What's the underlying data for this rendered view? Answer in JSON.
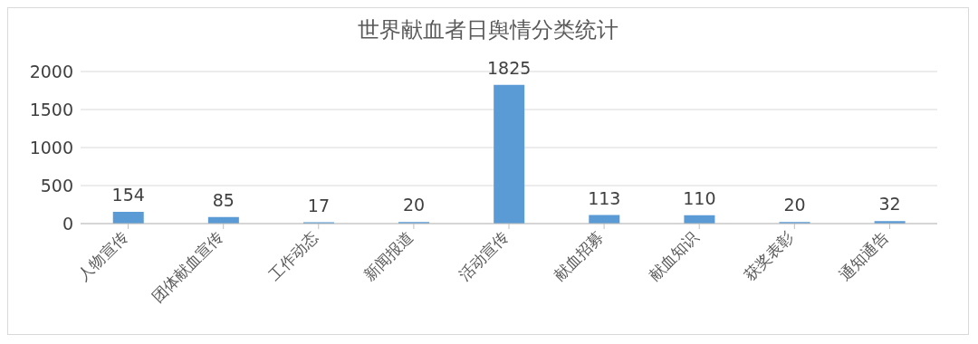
{
  "chart_data": {
    "type": "bar",
    "title": "世界献血者日舆情分类统计",
    "categories": [
      "人物宣传",
      "团体献血宣传",
      "工作动态",
      "新闻报道",
      "活动宣传",
      "献血招募",
      "献血知识",
      "获奖表彰",
      "通知通告"
    ],
    "values": [
      154,
      85,
      17,
      20,
      1825,
      113,
      110,
      20,
      32
    ],
    "color": "#5b9bd5",
    "ylim": [
      0,
      2000
    ],
    "yticks": [
      0,
      500,
      1000,
      1500,
      2000
    ],
    "grid": "y",
    "data_labels": true,
    "legend": false
  }
}
